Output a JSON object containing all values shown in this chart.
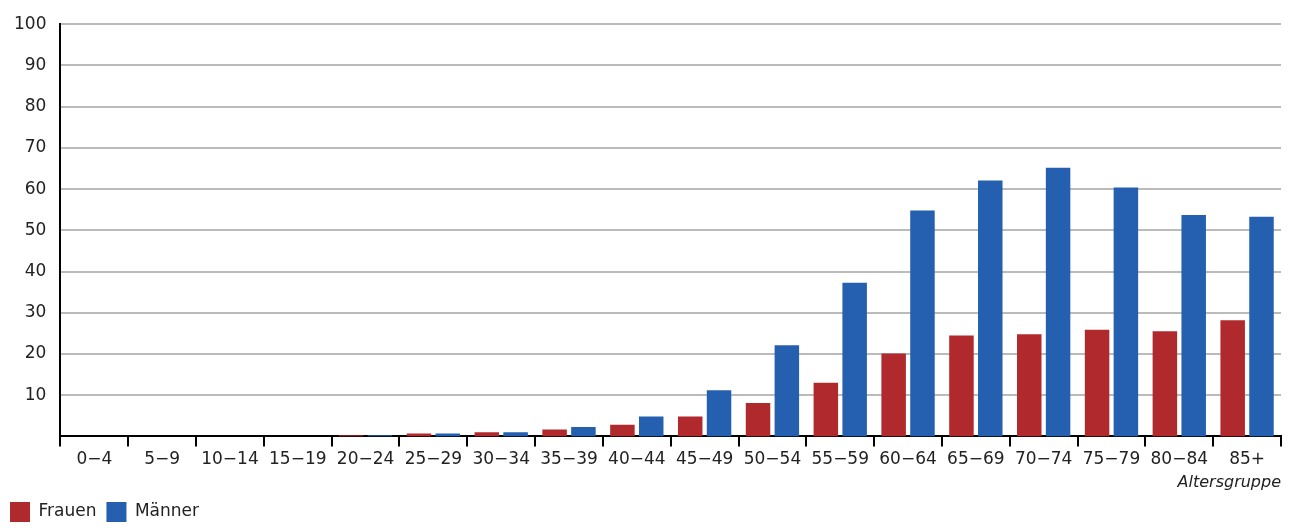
{
  "chart_data": {
    "type": "bar",
    "xlabel": "Altersgruppe",
    "categories": [
      "0−4",
      "5−9",
      "10−14",
      "15−19",
      "20−24",
      "25−29",
      "30−34",
      "35−39",
      "40−44",
      "45−49",
      "50−54",
      "55−59",
      "60−64",
      "65−69",
      "70−74",
      "75−79",
      "80−84",
      "85+"
    ],
    "series": [
      {
        "name": "Frauen",
        "color": "#b0292d",
        "values": [
          0,
          0,
          0,
          0,
          0.3,
          0.7,
          1.0,
          1.7,
          2.8,
          4.8,
          8.1,
          13.0,
          20.1,
          24.5,
          24.8,
          25.9,
          25.5,
          28.2
        ]
      },
      {
        "name": "Männer",
        "color": "#245fb0",
        "values": [
          0,
          0,
          0,
          0,
          0.3,
          0.7,
          1.0,
          2.3,
          4.8,
          11.2,
          22.1,
          37.3,
          54.8,
          62.1,
          65.2,
          60.4,
          53.7,
          53.3
        ]
      }
    ],
    "ylim": [
      0,
      100
    ],
    "yticks": [
      10,
      20,
      30,
      40,
      50,
      60,
      70,
      80,
      90,
      100
    ],
    "grid": "y",
    "legend": "bottom left"
  }
}
